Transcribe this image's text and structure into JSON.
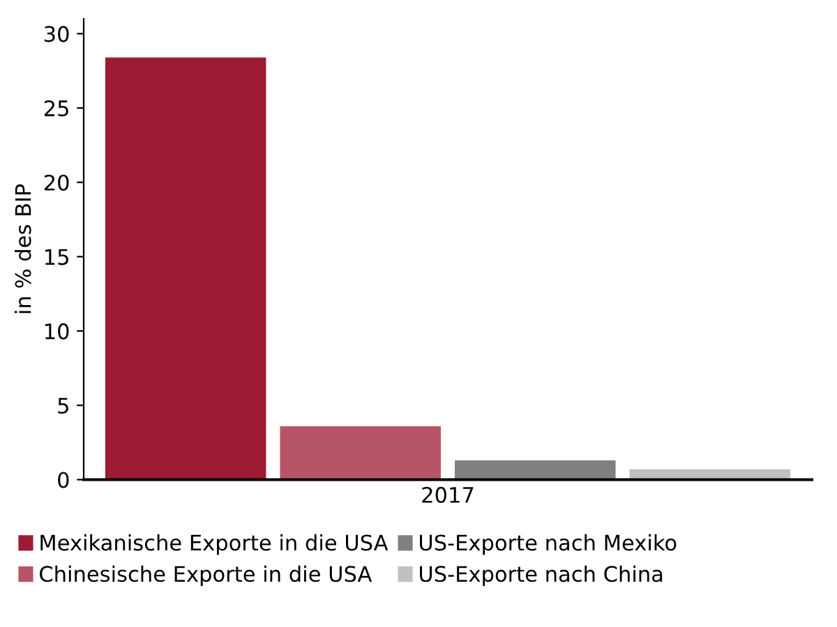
{
  "chart_data": {
    "type": "bar",
    "ylabel": "in % des BIP",
    "categories": [
      "2017"
    ],
    "series": [
      {
        "name": "Mexikanische Exporte in die USA",
        "color": "#9e1b34",
        "values": [
          28.4
        ]
      },
      {
        "name": "Chinesische Exporte in die USA",
        "color": "#b85467",
        "values": [
          3.6
        ]
      },
      {
        "name": "US-Exporte nach Mexiko",
        "color": "#808080",
        "values": [
          1.3
        ]
      },
      {
        "name": "US-Exporte nach China",
        "color": "#c0c0c0",
        "values": [
          0.7
        ]
      }
    ],
    "ylim": [
      0,
      31
    ],
    "yticks": [
      0,
      5,
      10,
      15,
      20,
      25,
      30
    ],
    "grid": false,
    "legend": "bottom"
  }
}
